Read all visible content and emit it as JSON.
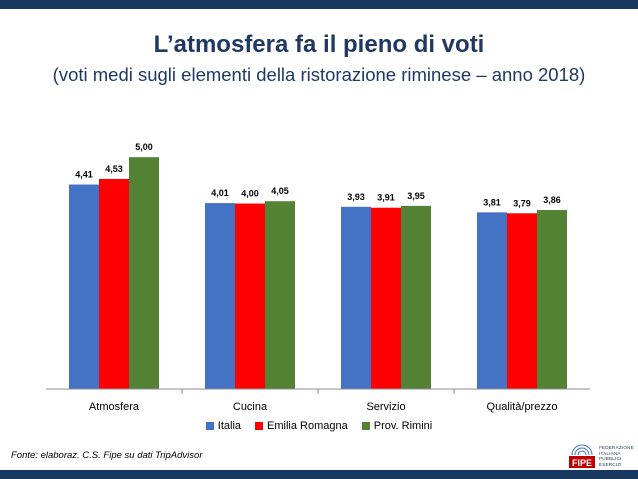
{
  "header": {
    "title": "L’atmosfera fa il pieno di voti",
    "subtitle": "(voti medi sugli elementi della ristorazione riminese – anno 2018)"
  },
  "chart_data": {
    "type": "bar",
    "categories": [
      "Atmosfera",
      "Cucina",
      "Servizio",
      "Qualità/prezzo"
    ],
    "series": [
      {
        "name": "Italia",
        "color": "#4472c4",
        "values": [
          4.41,
          4.01,
          3.93,
          3.81
        ],
        "labels": [
          "4,41",
          "4,01",
          "3,93",
          "3,81"
        ]
      },
      {
        "name": "Emilia Romagna",
        "color": "#ff0000",
        "values": [
          4.53,
          4.0,
          3.91,
          3.79
        ],
        "labels": [
          "4,53",
          "4,00",
          "3,91",
          "3,79"
        ]
      },
      {
        "name": "Prov. Rimini",
        "color": "#548235",
        "values": [
          5.0,
          4.05,
          3.95,
          3.86
        ],
        "labels": [
          "5,00",
          "4,05",
          "3,95",
          "3,86"
        ]
      }
    ],
    "ylim": [
      0,
      5.5
    ],
    "grid": false,
    "legend": "bottom"
  },
  "footer": {
    "source": "Fonte: elaboraz. C.S. Fipe su dati TripAdvisor",
    "logo_text": [
      "FEDERAZIONE",
      "ITALIANA",
      "PUBBLICI",
      "ESERCIZI"
    ],
    "logo_mark": "FIPE"
  },
  "colors": {
    "band": "#17375e",
    "title": "#1f3864"
  }
}
